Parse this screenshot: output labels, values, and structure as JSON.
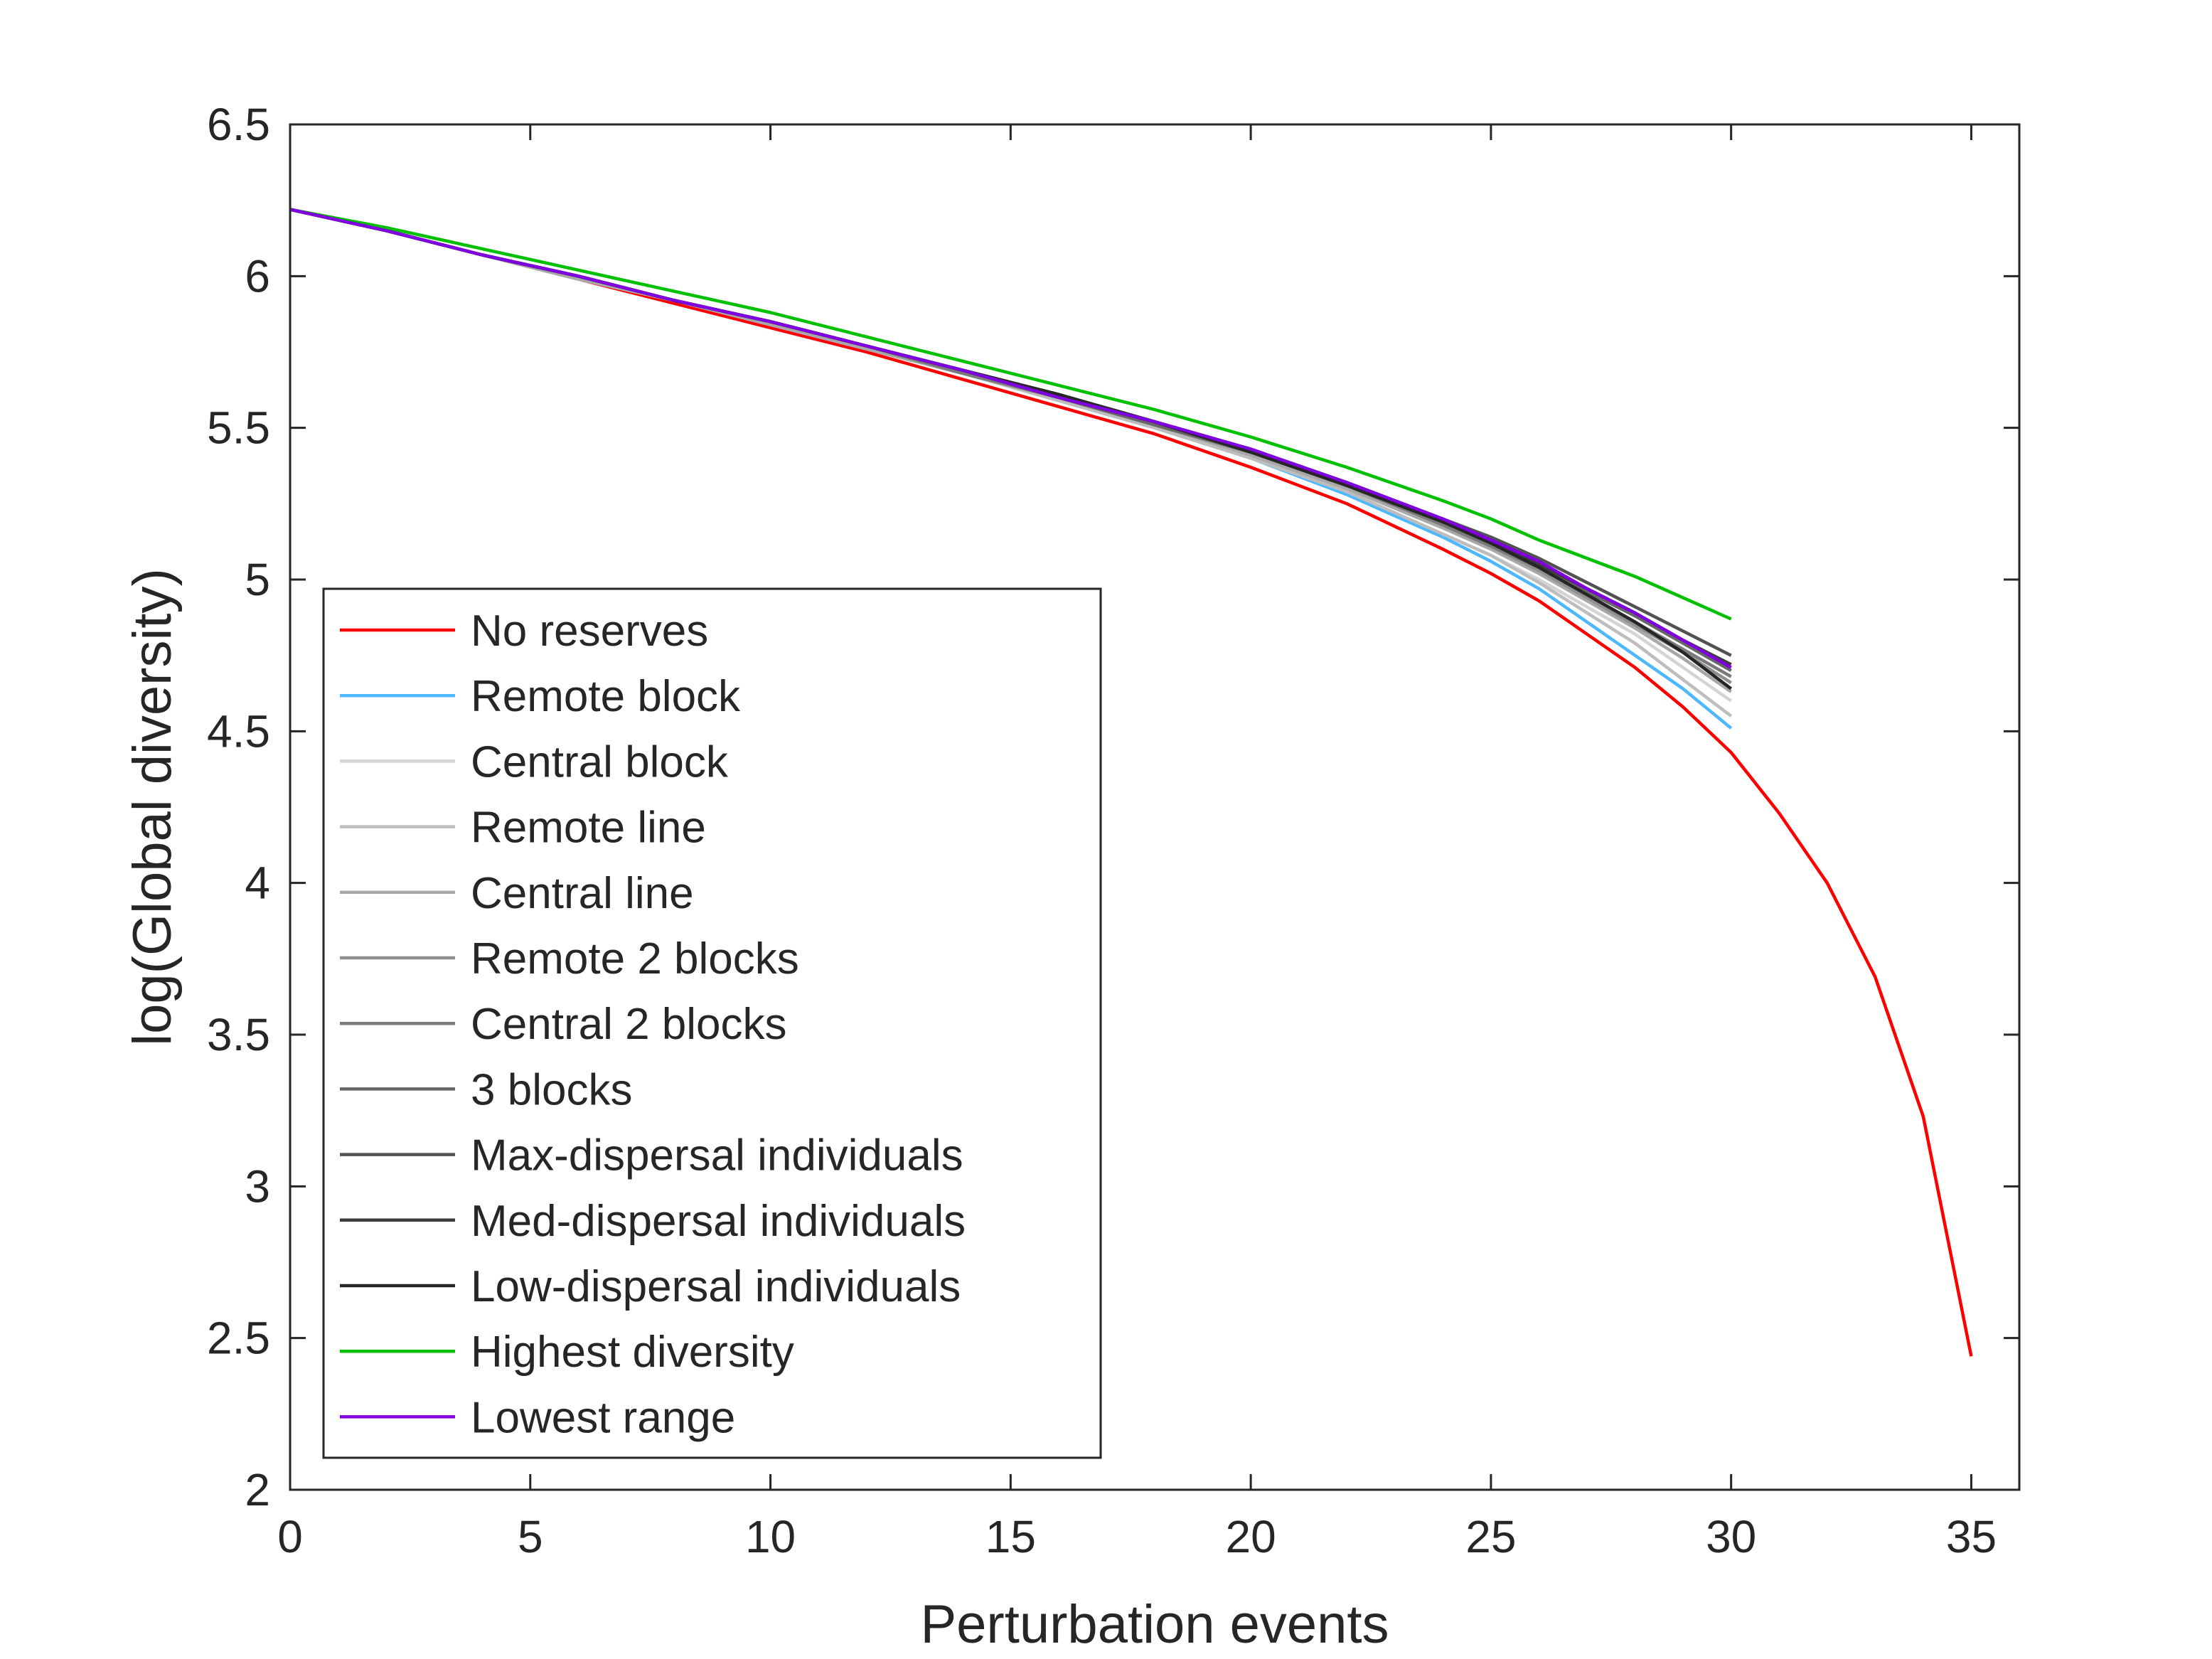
{
  "chart_data": {
    "type": "line",
    "xlabel": "Perturbation events",
    "ylabel": "log(Global diversity)",
    "xlim": [
      0,
      36
    ],
    "ylim": [
      2,
      6.5
    ],
    "xticks": [
      0,
      5,
      10,
      15,
      20,
      25,
      30,
      35
    ],
    "yticks": [
      2,
      2.5,
      3,
      3.5,
      4,
      4.5,
      5,
      5.5,
      6,
      6.5
    ],
    "xtick_labels": [
      "0",
      "5",
      "10",
      "15",
      "20",
      "25",
      "30",
      "35"
    ],
    "ytick_labels": [
      "2",
      "2.5",
      "3",
      "3.5",
      "4",
      "4.5",
      "5",
      "5.5",
      "6",
      "6.5"
    ],
    "grid": false,
    "legend_position": "lower-left",
    "series": [
      {
        "name": "No reserves",
        "color": "#ff0000",
        "x": [
          0,
          2,
          4,
          6,
          8,
          10,
          12,
          14,
          16,
          18,
          20,
          22,
          24,
          25,
          26,
          27,
          28,
          29,
          30,
          31,
          32,
          33,
          34,
          35
        ],
        "y": [
          6.22,
          6.15,
          6.07,
          5.99,
          5.91,
          5.83,
          5.75,
          5.66,
          5.57,
          5.48,
          5.37,
          5.25,
          5.1,
          5.02,
          4.93,
          4.82,
          4.71,
          4.58,
          4.43,
          4.23,
          4.0,
          3.69,
          3.23,
          2.44
        ]
      },
      {
        "name": "Remote block",
        "color": "#4db8ff",
        "x": [
          0,
          2,
          4,
          6,
          8,
          10,
          12,
          14,
          16,
          18,
          20,
          22,
          24,
          25,
          26,
          27,
          28,
          29,
          30
        ],
        "y": [
          6.22,
          6.15,
          6.07,
          5.99,
          5.92,
          5.84,
          5.76,
          5.68,
          5.59,
          5.5,
          5.4,
          5.28,
          5.14,
          5.06,
          4.97,
          4.86,
          4.75,
          4.64,
          4.51
        ]
      },
      {
        "name": "Central block",
        "color": "#d4d4d4",
        "x": [
          0,
          2,
          4,
          6,
          8,
          10,
          12,
          14,
          16,
          18,
          20,
          22,
          24,
          25,
          26,
          27,
          28,
          29,
          30
        ],
        "y": [
          6.22,
          6.15,
          6.07,
          5.99,
          5.92,
          5.84,
          5.76,
          5.68,
          5.59,
          5.5,
          5.4,
          5.29,
          5.15,
          5.08,
          5.0,
          4.91,
          4.82,
          4.71,
          4.6
        ]
      },
      {
        "name": "Remote line",
        "color": "#bdbdbd",
        "x": [
          0,
          2,
          4,
          6,
          8,
          10,
          12,
          14,
          16,
          18,
          20,
          22,
          24,
          25,
          26,
          27,
          28,
          29,
          30
        ],
        "y": [
          6.22,
          6.15,
          6.07,
          5.99,
          5.92,
          5.84,
          5.76,
          5.68,
          5.59,
          5.5,
          5.4,
          5.29,
          5.15,
          5.08,
          4.99,
          4.89,
          4.79,
          4.67,
          4.55
        ]
      },
      {
        "name": "Central line",
        "color": "#a8a8a8",
        "x": [
          0,
          2,
          4,
          6,
          8,
          10,
          12,
          14,
          16,
          18,
          20,
          22,
          24,
          25,
          26,
          27,
          28,
          29,
          30
        ],
        "y": [
          6.22,
          6.15,
          6.07,
          5.99,
          5.92,
          5.84,
          5.76,
          5.68,
          5.6,
          5.51,
          5.41,
          5.3,
          5.17,
          5.1,
          5.02,
          4.93,
          4.84,
          4.74,
          4.63
        ]
      },
      {
        "name": "Remote 2 blocks",
        "color": "#8f8f8f",
        "x": [
          0,
          2,
          4,
          6,
          8,
          10,
          12,
          14,
          16,
          18,
          20,
          22,
          24,
          25,
          26,
          27,
          28,
          29,
          30
        ],
        "y": [
          6.22,
          6.15,
          6.07,
          6.0,
          5.92,
          5.85,
          5.77,
          5.68,
          5.6,
          5.51,
          5.42,
          5.31,
          5.18,
          5.11,
          5.03,
          4.94,
          4.85,
          4.76,
          4.66
        ]
      },
      {
        "name": "Central 2 blocks",
        "color": "#7a7a7a",
        "x": [
          0,
          2,
          4,
          6,
          8,
          10,
          12,
          14,
          16,
          18,
          20,
          22,
          24,
          25,
          26,
          27,
          28,
          29,
          30
        ],
        "y": [
          6.22,
          6.15,
          6.07,
          6.0,
          5.92,
          5.85,
          5.77,
          5.68,
          5.6,
          5.51,
          5.42,
          5.31,
          5.18,
          5.11,
          5.04,
          4.95,
          4.86,
          4.77,
          4.68
        ]
      },
      {
        "name": "3 blocks",
        "color": "#666666",
        "x": [
          0,
          2,
          4,
          6,
          8,
          10,
          12,
          14,
          16,
          18,
          20,
          22,
          24,
          25,
          26,
          27,
          28,
          29,
          30
        ],
        "y": [
          6.22,
          6.15,
          6.07,
          6.0,
          5.92,
          5.85,
          5.77,
          5.69,
          5.6,
          5.51,
          5.42,
          5.31,
          5.19,
          5.12,
          5.05,
          4.96,
          4.88,
          4.79,
          4.7
        ]
      },
      {
        "name": "Max-dispersal individuals",
        "color": "#525252",
        "x": [
          0,
          2,
          4,
          6,
          8,
          10,
          12,
          14,
          16,
          18,
          20,
          22,
          24,
          25,
          26,
          27,
          28,
          29,
          30
        ],
        "y": [
          6.22,
          6.15,
          6.07,
          6.0,
          5.92,
          5.85,
          5.77,
          5.69,
          5.61,
          5.52,
          5.43,
          5.32,
          5.2,
          5.14,
          5.07,
          4.99,
          4.91,
          4.83,
          4.75
        ]
      },
      {
        "name": "Med-dispersal individuals",
        "color": "#3b3b3b",
        "x": [
          0,
          2,
          4,
          6,
          8,
          10,
          12,
          14,
          16,
          18,
          20,
          22,
          24,
          25,
          26,
          27,
          28,
          29,
          30
        ],
        "y": [
          6.22,
          6.15,
          6.07,
          6.0,
          5.92,
          5.85,
          5.77,
          5.69,
          5.6,
          5.52,
          5.42,
          5.32,
          5.19,
          5.13,
          5.05,
          4.97,
          4.89,
          4.8,
          4.72
        ]
      },
      {
        "name": "Low-dispersal individuals",
        "color": "#262626",
        "x": [
          0,
          2,
          4,
          6,
          8,
          10,
          12,
          14,
          16,
          18,
          20,
          22,
          24,
          25,
          26,
          27,
          28,
          29,
          30
        ],
        "y": [
          6.22,
          6.15,
          6.07,
          6.0,
          5.92,
          5.85,
          5.77,
          5.69,
          5.61,
          5.52,
          5.42,
          5.31,
          5.19,
          5.12,
          5.04,
          4.95,
          4.86,
          4.76,
          4.64
        ]
      },
      {
        "name": "Highest diversity",
        "color": "#00c000",
        "x": [
          0,
          2,
          4,
          6,
          8,
          10,
          12,
          14,
          16,
          18,
          20,
          22,
          24,
          25,
          26,
          27,
          28,
          29,
          30
        ],
        "y": [
          6.22,
          6.16,
          6.09,
          6.02,
          5.95,
          5.88,
          5.8,
          5.72,
          5.64,
          5.56,
          5.47,
          5.37,
          5.26,
          5.2,
          5.13,
          5.07,
          5.01,
          4.94,
          4.87
        ]
      },
      {
        "name": "Lowest range",
        "color": "#8000e0",
        "x": [
          0,
          2,
          4,
          6,
          8,
          10,
          12,
          14,
          16,
          18,
          20,
          22,
          24,
          25,
          26,
          27,
          28,
          29,
          30
        ],
        "y": [
          6.22,
          6.15,
          6.07,
          6.0,
          5.92,
          5.85,
          5.77,
          5.69,
          5.6,
          5.52,
          5.43,
          5.32,
          5.2,
          5.13,
          5.06,
          4.97,
          4.89,
          4.8,
          4.71
        ]
      }
    ]
  }
}
